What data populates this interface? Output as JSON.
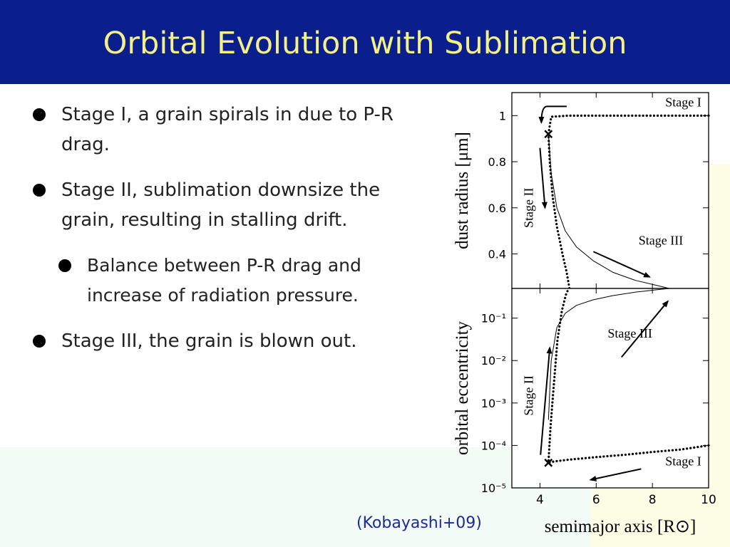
{
  "slide": {
    "title": "Orbital Evolution with Sublimation",
    "bullets": [
      "Stage I, a grain spirals in due to P-R drag.",
      "Stage II, sublimation downsize the grain, resulting in stalling drift.",
      "Balance between P-R drag and increase of radiation pressure.",
      "Stage III, the grain is blown out."
    ],
    "citation": "(Kobayashi+09)"
  },
  "colors": {
    "title_bar": "#0a1e8c",
    "title_text": "#f3f08a",
    "citation_text": "#1a2a9a"
  },
  "chart_data": [
    {
      "type": "line",
      "ylabel": "dust radius [μm]",
      "xlim": [
        3,
        10
      ],
      "ylim": [
        0.25,
        1.1
      ],
      "xticks": [
        "4",
        "6",
        "8",
        "10"
      ],
      "yticks": [
        "0.4",
        "0.6",
        "0.8",
        "1"
      ],
      "series": [
        {
          "style": "dotted",
          "x": [
            10,
            9,
            8,
            7,
            6,
            5,
            4.4,
            4.3,
            4.35,
            4.45,
            4.6,
            4.8,
            4.95,
            5.05
          ],
          "y": [
            1.0,
            1.0,
            1.0,
            1.0,
            1.0,
            1.0,
            0.995,
            0.92,
            0.8,
            0.65,
            0.52,
            0.4,
            0.32,
            0.25
          ]
        },
        {
          "style": "solid",
          "x": [
            4.3,
            4.4,
            4.6,
            4.9,
            5.3,
            5.9,
            6.6,
            7.4,
            8.2,
            8.6
          ],
          "y": [
            0.92,
            0.75,
            0.6,
            0.5,
            0.43,
            0.37,
            0.32,
            0.285,
            0.262,
            0.25
          ]
        }
      ],
      "annotations": [
        {
          "text": "Stage I",
          "x": 9.1,
          "y": 1.04
        },
        {
          "text": "Stage II",
          "x": 3.75,
          "y": 0.6
        },
        {
          "text": "Stage III",
          "x": 8.3,
          "y": 0.44
        }
      ]
    },
    {
      "type": "line",
      "xlabel": "semimajor axis [R⊙]",
      "ylabel": "orbital eccentricity",
      "yscale": "log",
      "xlim": [
        3,
        10
      ],
      "ylim": [
        1e-05,
        0.5
      ],
      "xticks": [
        "4",
        "6",
        "8",
        "10"
      ],
      "yticks": [
        "10⁻⁵",
        "10⁻⁴",
        "10⁻³",
        "10⁻²",
        "10⁻¹"
      ],
      "series": [
        {
          "style": "dotted",
          "x": [
            10,
            9,
            8,
            7,
            6,
            5,
            4.5,
            4.3,
            4.38,
            4.5,
            4.62,
            4.78,
            4.92,
            5.02
          ],
          "y": [
            0.0001,
            8e-05,
            7e-05,
            6e-05,
            5.3e-05,
            4.6e-05,
            4.2e-05,
            3.9e-05,
            0.0003,
            0.003,
            0.03,
            0.15,
            0.35,
            0.5
          ]
        },
        {
          "style": "solid",
          "x": [
            4.3,
            4.4,
            4.6,
            4.9,
            5.3,
            5.9,
            6.6,
            7.4,
            8.2,
            8.6
          ],
          "y": [
            0.0004,
            0.01,
            0.06,
            0.13,
            0.2,
            0.27,
            0.34,
            0.41,
            0.47,
            0.5
          ]
        }
      ],
      "annotations": [
        {
          "text": "Stage III",
          "x": 7.2,
          "y": 0.035
        },
        {
          "text": "Stage II",
          "x": 3.75,
          "y": 0.0015
        },
        {
          "text": "Stage I",
          "x": 9.1,
          "y": 3.4e-05
        }
      ]
    }
  ]
}
